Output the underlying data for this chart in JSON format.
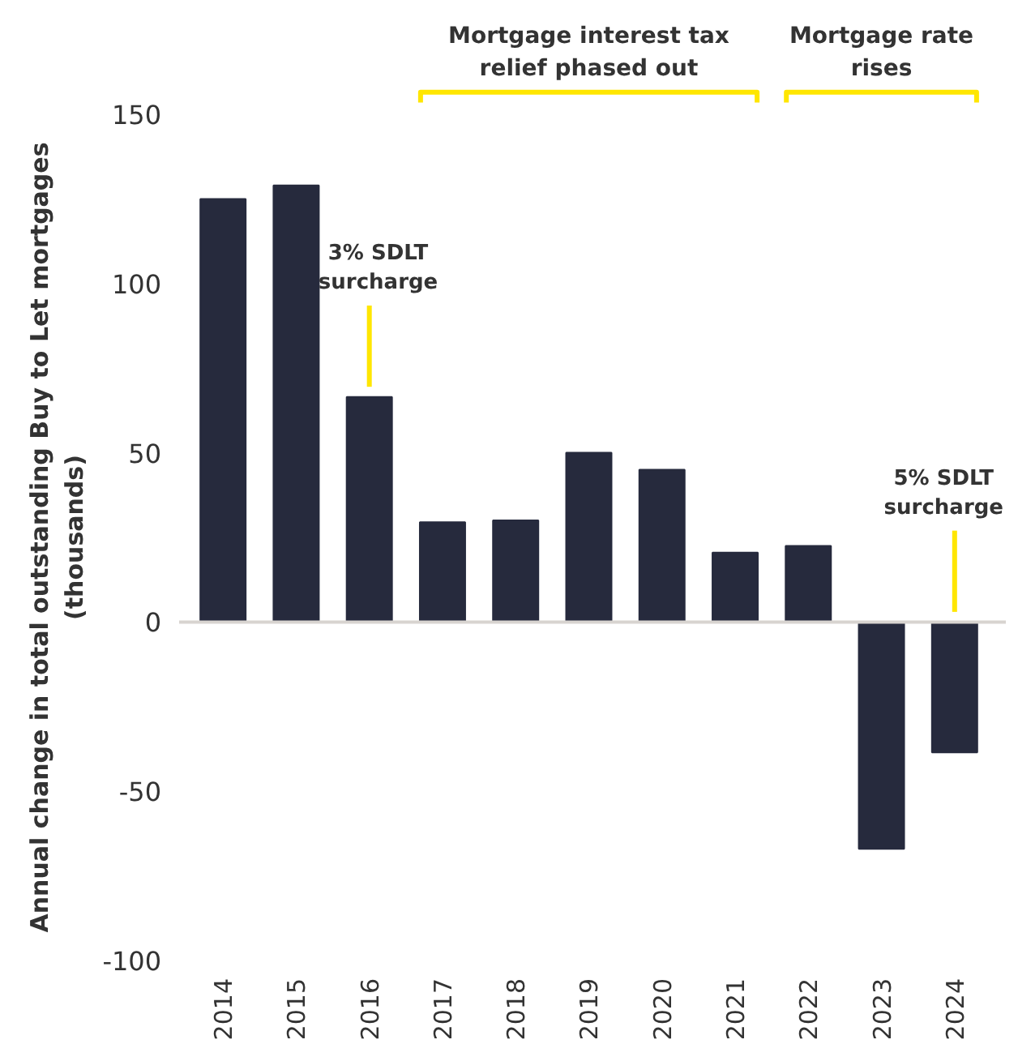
{
  "chart_data": {
    "type": "bar",
    "ylabel": "Annual change in total outstanding Buy to Let mortgages (thousands)",
    "categories": [
      "2014",
      "2015",
      "2016",
      "2017",
      "2018",
      "2019",
      "2020",
      "2021",
      "2022",
      "2023",
      "2024"
    ],
    "values": [
      125,
      129,
      66.5,
      29.5,
      30,
      50,
      45,
      20.5,
      22.5,
      -67,
      -38.5
    ],
    "color": "#262a3d",
    "ylim": [
      -100,
      150
    ],
    "yticks": [
      -100,
      -50,
      0,
      50,
      100,
      150
    ],
    "ref_lines": [
      {
        "axis": "y",
        "value": 0,
        "color": "#d8d4d0"
      }
    ],
    "annotations": [
      "Mortgage interest tax relief phased out",
      "Mortgage rate rises",
      {
        "text": "3% SDLT surcharge",
        "x": "2016",
        "y": 66.5
      },
      "5% SDLT surcharge"
    ]
  }
}
